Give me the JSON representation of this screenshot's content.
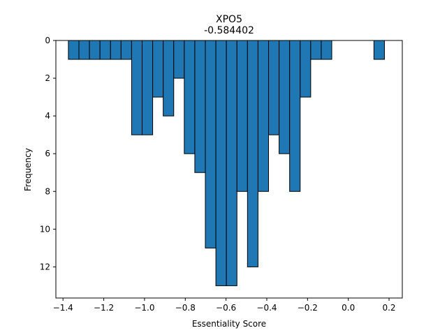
{
  "chart_data": {
    "type": "bar",
    "title": "XPO5",
    "subtitle": "-0.584402",
    "xlabel": "Essentiality Score",
    "ylabel": "Frequency",
    "xlim": [
      -1.435,
      0.265
    ],
    "ylim": [
      13.65,
      0
    ],
    "y_inverted": true,
    "grid": false,
    "bar_color": "#1f77b4",
    "edge_color": "#000000",
    "bin_width": 0.0517,
    "bins": [
      {
        "start": -1.3736,
        "count": 1
      },
      {
        "start": -1.3219,
        "count": 1
      },
      {
        "start": -1.2702,
        "count": 1
      },
      {
        "start": -1.2185,
        "count": 1
      },
      {
        "start": -1.1668,
        "count": 1
      },
      {
        "start": -1.1151,
        "count": 1
      },
      {
        "start": -1.0634,
        "count": 5
      },
      {
        "start": -1.0117,
        "count": 5
      },
      {
        "start": -0.96,
        "count": 3
      },
      {
        "start": -0.9083,
        "count": 4
      },
      {
        "start": -0.8566,
        "count": 2
      },
      {
        "start": -0.8049,
        "count": 6
      },
      {
        "start": -0.7532,
        "count": 7
      },
      {
        "start": -0.7015,
        "count": 11
      },
      {
        "start": -0.6498,
        "count": 13
      },
      {
        "start": -0.5981,
        "count": 13
      },
      {
        "start": -0.5464,
        "count": 8
      },
      {
        "start": -0.4947,
        "count": 12
      },
      {
        "start": -0.443,
        "count": 8
      },
      {
        "start": -0.3913,
        "count": 5
      },
      {
        "start": -0.3396,
        "count": 6
      },
      {
        "start": -0.2879,
        "count": 8
      },
      {
        "start": -0.2362,
        "count": 3
      },
      {
        "start": -0.1845,
        "count": 1
      },
      {
        "start": -0.1328,
        "count": 1
      },
      {
        "start": -0.0811,
        "count": 0
      },
      {
        "start": -0.0294,
        "count": 0
      },
      {
        "start": 0.0223,
        "count": 0
      },
      {
        "start": 0.074,
        "count": 0
      },
      {
        "start": 0.1257,
        "count": 1
      }
    ],
    "x_ticks": [
      -1.4,
      -1.2,
      -1.0,
      -0.8,
      -0.6,
      -0.4,
      -0.2,
      0.0,
      0.2
    ],
    "x_tick_labels": [
      "−1.4",
      "−1.2",
      "−1.0",
      "−0.8",
      "−0.6",
      "−0.4",
      "−0.2",
      "0.0",
      "0.2"
    ],
    "y_ticks": [
      0,
      2,
      4,
      6,
      8,
      10,
      12
    ],
    "y_tick_labels": [
      "0",
      "2",
      "4",
      "6",
      "8",
      "10",
      "12"
    ]
  }
}
